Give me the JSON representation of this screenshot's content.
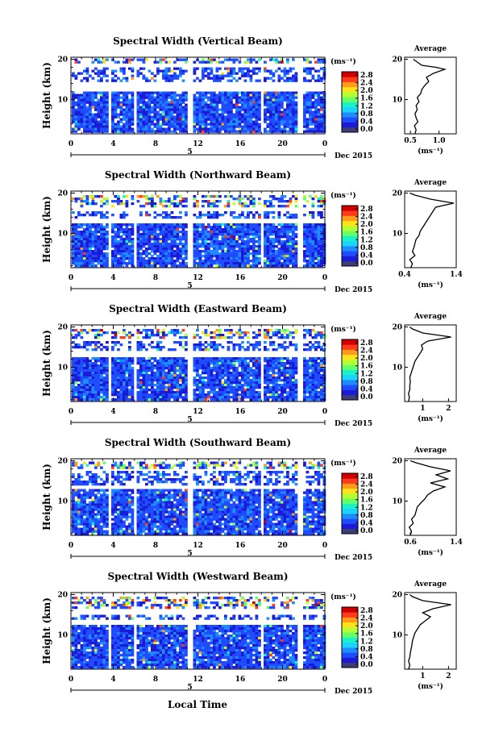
{
  "figure": {
    "date_label": "Dec 2015",
    "xlabel": "Local Time",
    "colorbar": {
      "unit": "(ms⁻¹)",
      "ticks": [
        "0.0",
        "0.4",
        "0.8",
        "1.2",
        "1.6",
        "2.0",
        "2.4",
        "2.8"
      ],
      "range": [
        0,
        3.0
      ],
      "colors": [
        "#3d3d78",
        "#1b1bd6",
        "#1f4cff",
        "#1e8cff",
        "#1ad4ff",
        "#19f2c8",
        "#66ff66",
        "#b4ff33",
        "#ffe21a",
        "#ff9a1a",
        "#ff3b1a",
        "#d10000"
      ]
    }
  },
  "chart_data": [
    {
      "type": "heatmap",
      "title": "Spectral Width (Vertical Beam)",
      "ylabel": "Height (km)",
      "x_ticks": [
        "0",
        "4",
        "8",
        "12",
        "16",
        "20",
        "0"
      ],
      "xlim": [
        0,
        24
      ],
      "y_ticks": [
        "10",
        "20"
      ],
      "ylim": [
        1.5,
        20.5
      ],
      "day_label": "5",
      "data_gaps_hours": [
        [
          3.5,
          3.8
        ],
        [
          5.9,
          6.2
        ],
        [
          11.0,
          11.5
        ],
        [
          17.7,
          18.1
        ],
        [
          21.4,
          21.8
        ]
      ],
      "echo_layers_km": [
        [
          2.0,
          12.0
        ],
        [
          14.5,
          18.0
        ],
        [
          19.0,
          20.2
        ]
      ],
      "value_range": [
        0,
        3.0
      ],
      "side_panel": {
        "title": "Average",
        "xlabel": "(ms⁻¹)",
        "x_ticks": [
          "0.5",
          "1.0"
        ],
        "xlim": [
          0.4,
          1.3
        ],
        "y_ticks": [
          "10",
          "20"
        ],
        "profile": [
          [
            1.5,
            0.58
          ],
          [
            2.5,
            0.6
          ],
          [
            3.5,
            0.57
          ],
          [
            4.5,
            0.63
          ],
          [
            5.5,
            0.6
          ],
          [
            6.5,
            0.58
          ],
          [
            7.5,
            0.62
          ],
          [
            8.5,
            0.6
          ],
          [
            9.5,
            0.65
          ],
          [
            10.5,
            0.62
          ],
          [
            11.5,
            0.68
          ],
          [
            12.5,
            0.7
          ],
          [
            13.5,
            0.75
          ],
          [
            14.5,
            0.82
          ],
          [
            15.5,
            0.78
          ],
          [
            16.5,
            0.9
          ],
          [
            17.5,
            1.1
          ],
          [
            18.0,
            0.95
          ],
          [
            18.5,
            0.7
          ],
          [
            19.5,
            0.6
          ],
          [
            20.0,
            0.55
          ]
        ]
      }
    },
    {
      "type": "heatmap",
      "title": "Spectral Width (Northward Beam)",
      "ylabel": "Height (km)",
      "x_ticks": [
        "0",
        "4",
        "8",
        "12",
        "16",
        "20",
        "0"
      ],
      "xlim": [
        0,
        24
      ],
      "y_ticks": [
        "10",
        "20"
      ],
      "ylim": [
        1.5,
        20.5
      ],
      "day_label": "5",
      "data_gaps_hours": [
        [
          3.5,
          3.8
        ],
        [
          5.9,
          6.2
        ],
        [
          11.0,
          11.5
        ],
        [
          17.7,
          18.1
        ],
        [
          21.4,
          21.8
        ]
      ],
      "echo_layers_km": [
        [
          2.0,
          12.5
        ],
        [
          14.0,
          15.5
        ],
        [
          17.0,
          19.5
        ]
      ],
      "value_range": [
        0,
        3.0
      ],
      "side_panel": {
        "title": "Average",
        "xlabel": "(ms⁻¹)",
        "x_ticks": [
          "0.4",
          "1.4"
        ],
        "xlim": [
          0.4,
          1.4
        ],
        "y_ticks": [
          "10",
          "20"
        ],
        "profile": [
          [
            1.5,
            0.52
          ],
          [
            2.5,
            0.55
          ],
          [
            3.5,
            0.5
          ],
          [
            4.5,
            0.6
          ],
          [
            5.5,
            0.55
          ],
          [
            6.5,
            0.58
          ],
          [
            7.5,
            0.6
          ],
          [
            8.5,
            0.62
          ],
          [
            9.5,
            0.68
          ],
          [
            10.5,
            0.7
          ],
          [
            11.5,
            0.75
          ],
          [
            12.5,
            0.8
          ],
          [
            13.5,
            0.85
          ],
          [
            14.5,
            0.9
          ],
          [
            15.5,
            0.95
          ],
          [
            16.5,
            1.0
          ],
          [
            17.5,
            1.35
          ],
          [
            18.5,
            0.9
          ],
          [
            19.5,
            0.6
          ],
          [
            20.0,
            0.5
          ]
        ]
      }
    },
    {
      "type": "heatmap",
      "title": "Spectral Width (Eastward Beam)",
      "ylabel": "Height (km)",
      "x_ticks": [
        "0",
        "4",
        "8",
        "12",
        "16",
        "20",
        "0"
      ],
      "xlim": [
        0,
        24
      ],
      "y_ticks": [
        "10",
        "20"
      ],
      "ylim": [
        1.5,
        20.5
      ],
      "day_label": "5",
      "data_gaps_hours": [
        [
          3.5,
          3.8
        ],
        [
          5.9,
          6.2
        ],
        [
          11.0,
          11.5
        ],
        [
          17.7,
          18.1
        ],
        [
          21.4,
          21.8
        ]
      ],
      "echo_layers_km": [
        [
          2.0,
          12.5
        ],
        [
          14.5,
          16.5
        ],
        [
          17.5,
          19.5
        ]
      ],
      "value_range": [
        0,
        3.0
      ],
      "side_panel": {
        "title": "Average",
        "xlabel": "(ms⁻¹)",
        "x_ticks": [
          "1",
          "2"
        ],
        "xlim": [
          0.3,
          2.3
        ],
        "y_ticks": [
          "10",
          "20"
        ],
        "profile": [
          [
            1.5,
            0.45
          ],
          [
            2.5,
            0.48
          ],
          [
            3.5,
            0.45
          ],
          [
            4.5,
            0.5
          ],
          [
            5.5,
            0.5
          ],
          [
            6.5,
            0.52
          ],
          [
            7.5,
            0.5
          ],
          [
            8.5,
            0.55
          ],
          [
            9.5,
            0.6
          ],
          [
            10.5,
            0.65
          ],
          [
            11.5,
            0.7
          ],
          [
            12.5,
            0.8
          ],
          [
            13.5,
            0.9
          ],
          [
            14.5,
            1.0
          ],
          [
            15.5,
            0.95
          ],
          [
            16.5,
            1.2
          ],
          [
            17.5,
            2.1
          ],
          [
            18.5,
            1.0
          ],
          [
            19.5,
            0.6
          ],
          [
            20.0,
            0.5
          ]
        ]
      }
    },
    {
      "type": "heatmap",
      "title": "Spectral Width (Southward Beam)",
      "ylabel": "Height (km)",
      "x_ticks": [
        "0",
        "4",
        "8",
        "12",
        "16",
        "20",
        "0"
      ],
      "xlim": [
        0,
        24
      ],
      "y_ticks": [
        "10",
        "20"
      ],
      "ylim": [
        1.5,
        20.5
      ],
      "day_label": "5",
      "data_gaps_hours": [
        [
          3.5,
          3.8
        ],
        [
          5.9,
          6.2
        ],
        [
          11.0,
          11.5
        ],
        [
          17.7,
          18.1
        ],
        [
          21.4,
          21.8
        ]
      ],
      "echo_layers_km": [
        [
          2.0,
          13.0
        ],
        [
          14.0,
          17.5
        ],
        [
          18.0,
          19.8
        ]
      ],
      "value_range": [
        0,
        3.0
      ],
      "side_panel": {
        "title": "Average",
        "xlabel": "(ms⁻¹)",
        "x_ticks": [
          "0.6",
          "1.4"
        ],
        "xlim": [
          0.5,
          1.4
        ],
        "y_ticks": [
          "10",
          "20"
        ],
        "profile": [
          [
            1.5,
            0.6
          ],
          [
            2.5,
            0.62
          ],
          [
            3.5,
            0.58
          ],
          [
            4.5,
            0.65
          ],
          [
            5.5,
            0.62
          ],
          [
            6.5,
            0.68
          ],
          [
            7.5,
            0.7
          ],
          [
            8.5,
            0.72
          ],
          [
            9.5,
            0.78
          ],
          [
            10.5,
            0.85
          ],
          [
            11.5,
            0.9
          ],
          [
            12.5,
            1.0
          ],
          [
            13.5,
            1.2
          ],
          [
            14.5,
            0.95
          ],
          [
            15.5,
            1.25
          ],
          [
            16.5,
            1.05
          ],
          [
            17.5,
            1.3
          ],
          [
            18.5,
            0.95
          ],
          [
            19.5,
            0.7
          ],
          [
            20.0,
            0.6
          ]
        ]
      }
    },
    {
      "type": "heatmap",
      "title": "Spectral Width (Westward Beam)",
      "ylabel": "Height (km)",
      "x_ticks": [
        "0",
        "4",
        "8",
        "12",
        "16",
        "20",
        "0"
      ],
      "xlim": [
        0,
        24
      ],
      "y_ticks": [
        "10",
        "20"
      ],
      "ylim": [
        1.5,
        20.5
      ],
      "day_label": "5",
      "data_gaps_hours": [
        [
          3.5,
          3.8
        ],
        [
          5.9,
          6.2
        ],
        [
          11.0,
          11.5
        ],
        [
          17.7,
          18.1
        ],
        [
          21.4,
          21.8
        ]
      ],
      "echo_layers_km": [
        [
          2.0,
          12.5
        ],
        [
          14.0,
          15.0
        ],
        [
          17.0,
          19.5
        ]
      ],
      "value_range": [
        0,
        3.0
      ],
      "side_panel": {
        "title": "Average",
        "xlabel": "(ms⁻¹)",
        "x_ticks": [
          "1",
          "2"
        ],
        "xlim": [
          0.3,
          2.3
        ],
        "y_ticks": [
          "10",
          "20"
        ],
        "profile": [
          [
            1.5,
            0.45
          ],
          [
            2.5,
            0.5
          ],
          [
            3.5,
            0.45
          ],
          [
            4.5,
            0.5
          ],
          [
            5.5,
            0.52
          ],
          [
            6.5,
            0.55
          ],
          [
            7.5,
            0.58
          ],
          [
            8.5,
            0.6
          ],
          [
            9.5,
            0.65
          ],
          [
            10.5,
            0.7
          ],
          [
            11.5,
            0.8
          ],
          [
            12.5,
            0.9
          ],
          [
            13.5,
            1.1
          ],
          [
            14.5,
            1.3
          ],
          [
            15.5,
            1.0
          ],
          [
            16.5,
            1.4
          ],
          [
            17.5,
            2.1
          ],
          [
            18.5,
            1.0
          ],
          [
            19.5,
            0.6
          ],
          [
            20.0,
            0.5
          ]
        ]
      }
    }
  ]
}
